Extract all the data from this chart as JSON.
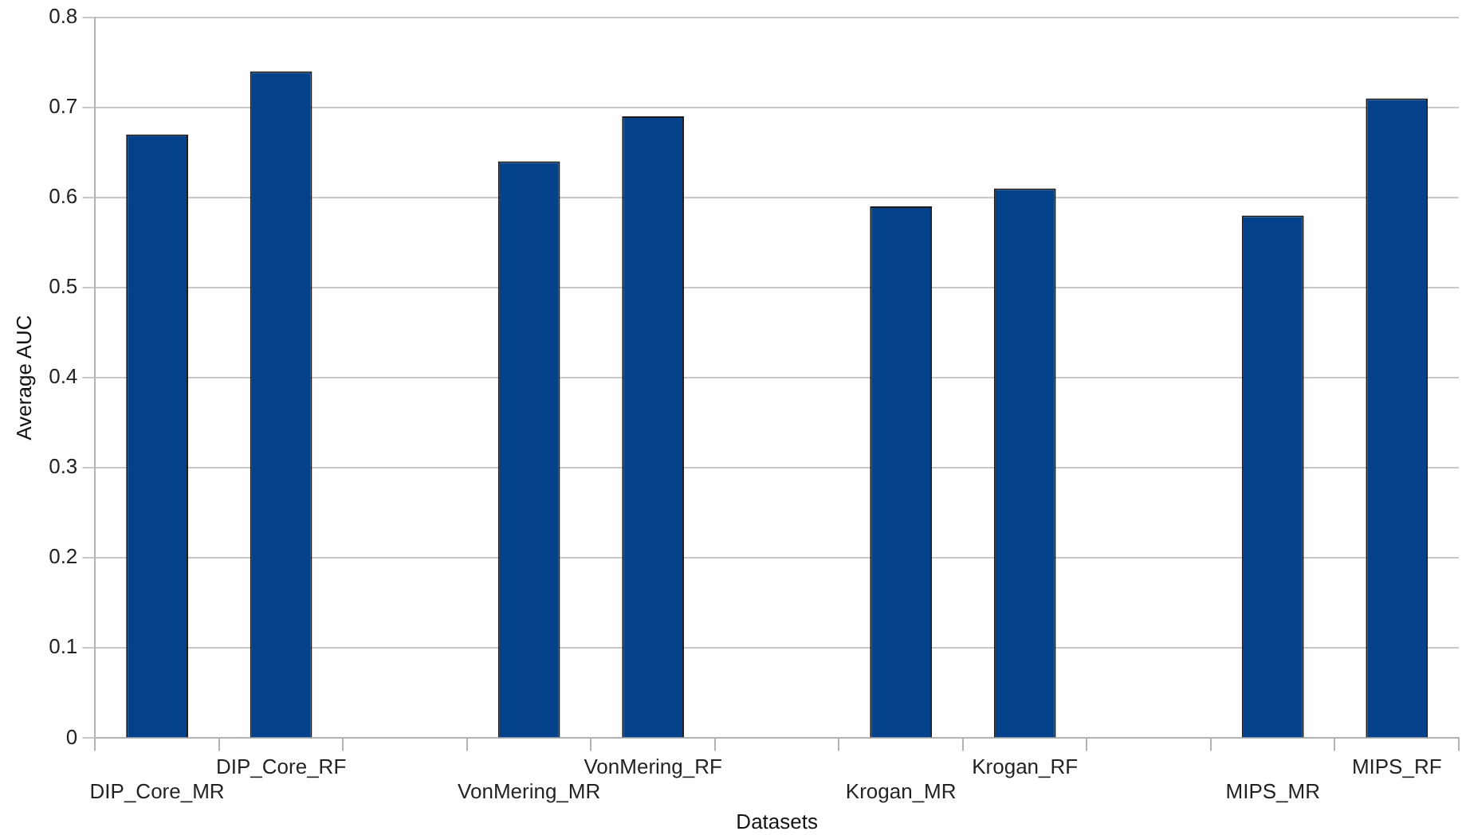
{
  "chart_data": {
    "type": "bar",
    "xlabel": "Datasets",
    "ylabel": "Average AUC",
    "categories": [
      "DIP_Core_MR",
      "DIP_Core_RF",
      null,
      "VonMering_MR",
      "VonMering_RF",
      null,
      "Krogan_MR",
      "Krogan_RF",
      null,
      "MIPS_MR",
      "MIPS_RF"
    ],
    "values": [
      0.67,
      0.74,
      null,
      0.64,
      0.69,
      null,
      0.59,
      0.61,
      null,
      0.58,
      0.71
    ],
    "color": "#03428a",
    "ylim": [
      0,
      0.8
    ],
    "yticks": [
      0,
      0.1,
      0.2,
      0.3,
      0.4,
      0.5,
      0.6,
      0.7,
      0.8
    ],
    "grid": "y",
    "legend": false
  }
}
